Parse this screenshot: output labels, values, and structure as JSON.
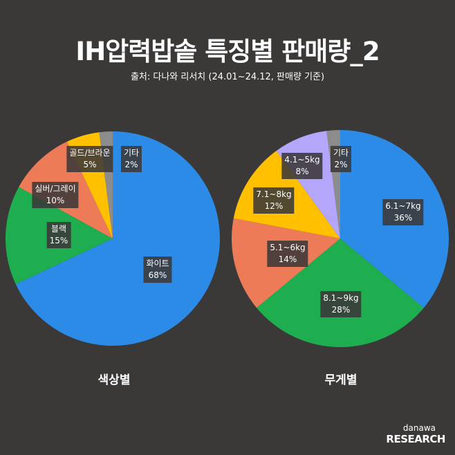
{
  "header": {
    "title": "IH압력밥솥 특징별 판매량_2",
    "subtitle": "출처: 다나와 리서치 (24.01~24.12, 판매량 기준)"
  },
  "chart_data": [
    {
      "type": "pie",
      "title": "색상별",
      "start": "12 o'clock clockwise",
      "slices": [
        {
          "label": "화이트",
          "value": 68,
          "pct": "68%",
          "color": "#2b8be6"
        },
        {
          "label": "블랙",
          "value": 15,
          "pct": "15%",
          "color": "#1fae4f"
        },
        {
          "label": "실버/그레이",
          "value": 10,
          "pct": "10%",
          "color": "#ee7b58"
        },
        {
          "label": "골드/브라운",
          "value": 5,
          "pct": "5%",
          "color": "#ffc000"
        },
        {
          "label": "기타",
          "value": 2,
          "pct": "2%",
          "color": "#8c8c8c"
        }
      ]
    },
    {
      "type": "pie",
      "title": "무게별",
      "start": "12 o'clock clockwise",
      "slices": [
        {
          "label": "6.1~7kg",
          "value": 36,
          "pct": "36%",
          "color": "#2b8be6"
        },
        {
          "label": "8.1~9kg",
          "value": 28,
          "pct": "28%",
          "color": "#1fae4f"
        },
        {
          "label": "5.1~6kg",
          "value": 14,
          "pct": "14%",
          "color": "#ee7b58"
        },
        {
          "label": "7.1~8kg",
          "value": 12,
          "pct": "12%",
          "color": "#ffc000"
        },
        {
          "label": "4.1~5kg",
          "value": 8,
          "pct": "8%",
          "color": "#b3a6fb"
        },
        {
          "label": "기타",
          "value": 2,
          "pct": "2%",
          "color": "#8c8c8c"
        }
      ]
    }
  ],
  "logo": {
    "line1": "danawa",
    "line2": "RESEARCH"
  }
}
